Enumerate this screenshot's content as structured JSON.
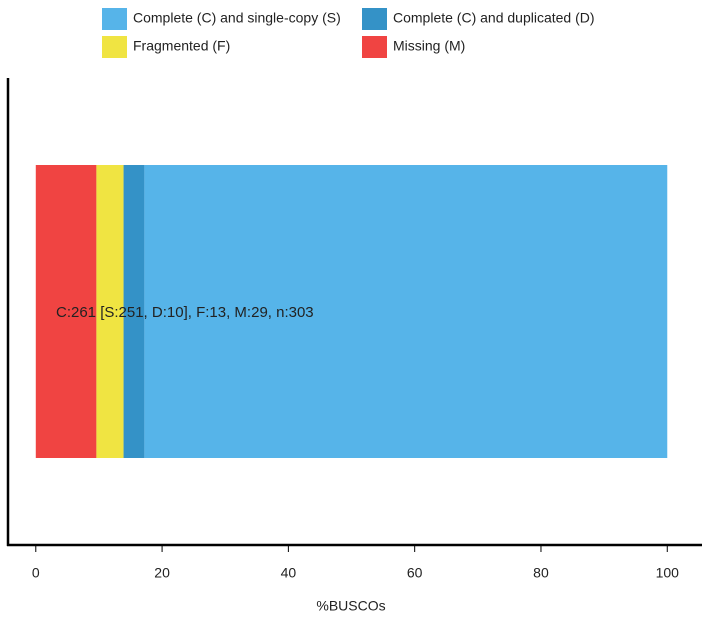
{
  "chart_data": {
    "type": "stacked-barh",
    "categories": [
      null
    ],
    "series": [
      {
        "name": "Complete (C) and single-copy (S)",
        "color": "#56b4e9",
        "values": [
          82.8
        ]
      },
      {
        "name": "Complete (C) and duplicated (D)",
        "color": "#3492c7",
        "values": [
          3.3
        ]
      },
      {
        "name": "Fragmented (F)",
        "color": "#f0e442",
        "values": [
          4.3
        ]
      },
      {
        "name": "Missing (M)",
        "color": "#f04442",
        "values": [
          9.6
        ]
      }
    ],
    "annotation": "C:261 [S:251, D:10], F:13, M:29, n:303",
    "xlabel": "%BUSCOs",
    "xlim": [
      -4.4,
      105.5
    ],
    "xticks": [
      0,
      20,
      40,
      60,
      80,
      100
    ],
    "legend": "top"
  }
}
